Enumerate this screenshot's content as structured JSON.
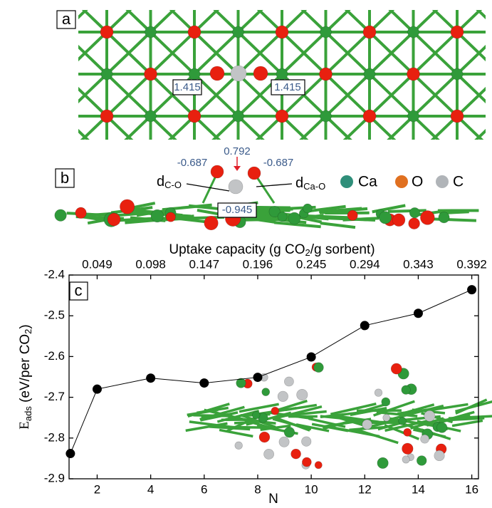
{
  "panel_a": {
    "label": "a",
    "bond_lengths": [
      "1.415",
      "1.415"
    ]
  },
  "panel_b": {
    "label": "b",
    "charges": [
      "-0.687",
      "0.792",
      "-0.687",
      "-0.945"
    ],
    "distance_labels": [
      [
        "d",
        "C-O"
      ],
      [
        "d",
        "Ca-O"
      ]
    ],
    "legend": [
      "Ca",
      "O",
      "C"
    ]
  },
  "chart_data": {
    "type": "line",
    "panel_label": "c",
    "x_label": "N",
    "y_label": [
      "E",
      "ads",
      " (eV/per CO",
      "2",
      ")"
    ],
    "x2_label": [
      "Uptake capacity (g CO",
      "2",
      "/g sorbent)"
    ],
    "x": [
      1,
      2,
      4,
      6,
      8,
      10,
      12,
      14,
      16
    ],
    "series": [
      {
        "color": "#000000",
        "values": [
          -2.838,
          -2.68,
          -2.653,
          -2.665,
          -2.651,
          -2.601,
          -2.524,
          -2.494,
          -2.436
        ]
      }
    ],
    "xlim": [
      0.95,
      16.25
    ],
    "xticks": [
      2,
      4,
      6,
      8,
      10,
      12,
      14,
      16
    ],
    "x2lim": [
      0.023275,
      0.398125
    ],
    "x2ticks": [
      0.049,
      0.098,
      0.147,
      0.196,
      0.245,
      0.294,
      0.343,
      0.392
    ],
    "ylim": [
      -2.9,
      -2.4
    ],
    "yticks": [
      -2.9,
      -2.8,
      -2.7,
      -2.6,
      -2.5,
      -2.4
    ]
  }
}
